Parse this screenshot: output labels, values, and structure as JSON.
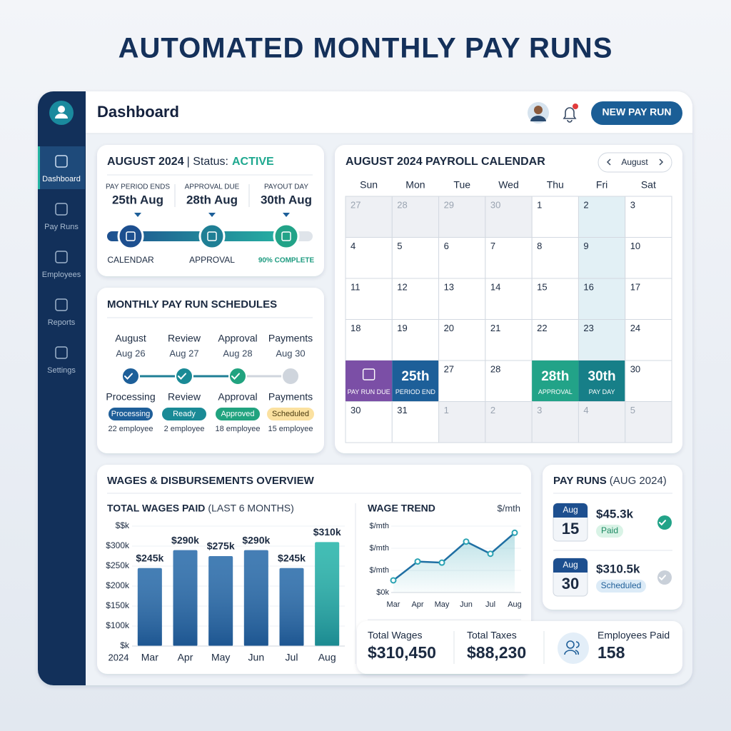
{
  "page_title": "AUTOMATED MONTHLY PAY RUNS",
  "sidebar": {
    "items": [
      "Dashboard",
      "Pay Runs",
      "Employees",
      "Reports",
      "Settings"
    ]
  },
  "header": {
    "title": "Dashboard",
    "button": "NEW PAY RUN"
  },
  "status_card": {
    "period": "AUGUST 2024",
    "separator": "| Status:",
    "status": "ACTIVE",
    "steps": [
      {
        "label": "PAY PERIOD ENDS",
        "date": "25th Aug"
      },
      {
        "label": "APPROVAL DUE",
        "date": "28th Aug"
      },
      {
        "label": "PAYOUT DAY",
        "date": "30th Aug"
      }
    ],
    "stages": [
      "CALENDAR",
      "APPROVAL",
      "90% COMPLETE"
    ]
  },
  "schedules": {
    "title": "MONTHLY PAY RUN SCHEDULES",
    "items": [
      {
        "name": "August",
        "date": "Aug 26",
        "stage": "Processing",
        "badge": "Processing",
        "badge_color": "#1f5f99",
        "count": "22 employee",
        "done": true
      },
      {
        "name": "Review",
        "date": "Aug 27",
        "stage": "Review",
        "badge": "Ready",
        "badge_color": "#1a8a96",
        "count": "2 employee",
        "done": true
      },
      {
        "name": "Approval",
        "date": "Aug 28",
        "stage": "Approval",
        "badge": "Approved",
        "badge_color": "#21a37f",
        "count": "18 employee",
        "done": true
      },
      {
        "name": "Payments",
        "date": "Aug 30",
        "stage": "Payments",
        "badge": "Scheduled",
        "badge_color": "#fbe1a0",
        "count": "15 employee",
        "done": false
      }
    ]
  },
  "calendar": {
    "title": "AUGUST 2024 PAYROLL CALENDAR",
    "month": "August",
    "weekdays": [
      "Sun",
      "Mon",
      "Tue",
      "Wed",
      "Thu",
      "Fri",
      "Sat"
    ],
    "rows": [
      [
        27,
        28,
        29,
        30,
        1,
        2,
        3
      ],
      [
        4,
        5,
        6,
        7,
        8,
        9,
        10
      ],
      [
        11,
        12,
        13,
        14,
        15,
        16,
        17
      ],
      [
        18,
        19,
        20,
        21,
        22,
        23,
        24
      ],
      [
        {
          "label": "PAY RUN DUE",
          "color": "#7b4fa6"
        },
        {
          "day": "25th",
          "label": "PERIOD END",
          "color": "#1d5f99"
        },
        27,
        28,
        {
          "day": "28th",
          "label": "APPROVAL",
          "color": "#22a388"
        },
        {
          "day": "30th",
          "label": "PAY DAY",
          "color": "#177f88"
        },
        30
      ],
      [
        30,
        31,
        1,
        2,
        3,
        4,
        5
      ]
    ]
  },
  "wages": {
    "title": "WAGES & DISBURSEMENTS OVERVIEW",
    "bar_chart": {
      "type": "bar",
      "title": "TOTAL WAGES PAID",
      "subtitle": "(LAST 6 MONTHS)",
      "year": "2024",
      "categories": [
        "Mar",
        "Apr",
        "May",
        "Jun",
        "Jul",
        "Aug"
      ],
      "values": [
        245,
        290,
        275,
        290,
        245,
        310
      ],
      "value_labels": [
        "$245k",
        "$290k",
        "$275k",
        "$290k",
        "$245k",
        "$310k"
      ],
      "colors": [
        "#2468a8",
        "#2468a8",
        "#2468a8",
        "#2468a8",
        "#2468a8",
        "#22b3a8"
      ],
      "ylim": [
        50,
        350
      ],
      "yticks": [
        {
          "value": 50,
          "label": "$k"
        },
        {
          "value": 100,
          "label": "$100k"
        },
        {
          "value": 150,
          "label": "$150k"
        },
        {
          "value": 200,
          "label": "$200k"
        },
        {
          "value": 250,
          "label": "$250k"
        },
        {
          "value": 300,
          "label": "$300k"
        },
        {
          "value": 350,
          "label": "$$k"
        }
      ]
    },
    "line_chart": {
      "type": "line",
      "title": "WAGE TREND",
      "unit": "$/mth",
      "color": "#1f6fa3",
      "categories": [
        "Mar",
        "Apr",
        "May",
        "Jun",
        "Jul",
        "Aug"
      ],
      "values": [
        0.55,
        1.4,
        1.35,
        2.3,
        1.75,
        2.7
      ],
      "ylim": [
        0,
        3
      ],
      "yticks": [
        {
          "value": 0,
          "label": "$0k"
        },
        {
          "value": 1,
          "label": "$/mth"
        },
        {
          "value": 2,
          "label": "$/mth"
        },
        {
          "value": 3,
          "label": "$/mth"
        }
      ]
    },
    "totals": [
      {
        "label": "Total Wages",
        "value": "$310,450"
      },
      {
        "label": "Total Taxes",
        "value": "$88,230"
      },
      {
        "label": "Employees Paid",
        "value": "158"
      }
    ]
  },
  "pay_runs": {
    "title": "PAY RUNS",
    "subtitle": "(AUG 2024)",
    "items": [
      {
        "month": "Aug",
        "day": "15",
        "amount": "$45.3k",
        "status": "Paid",
        "done": true
      },
      {
        "month": "Aug",
        "day": "30",
        "amount": "$310.5k",
        "status": "Scheduled",
        "done": false
      }
    ]
  }
}
